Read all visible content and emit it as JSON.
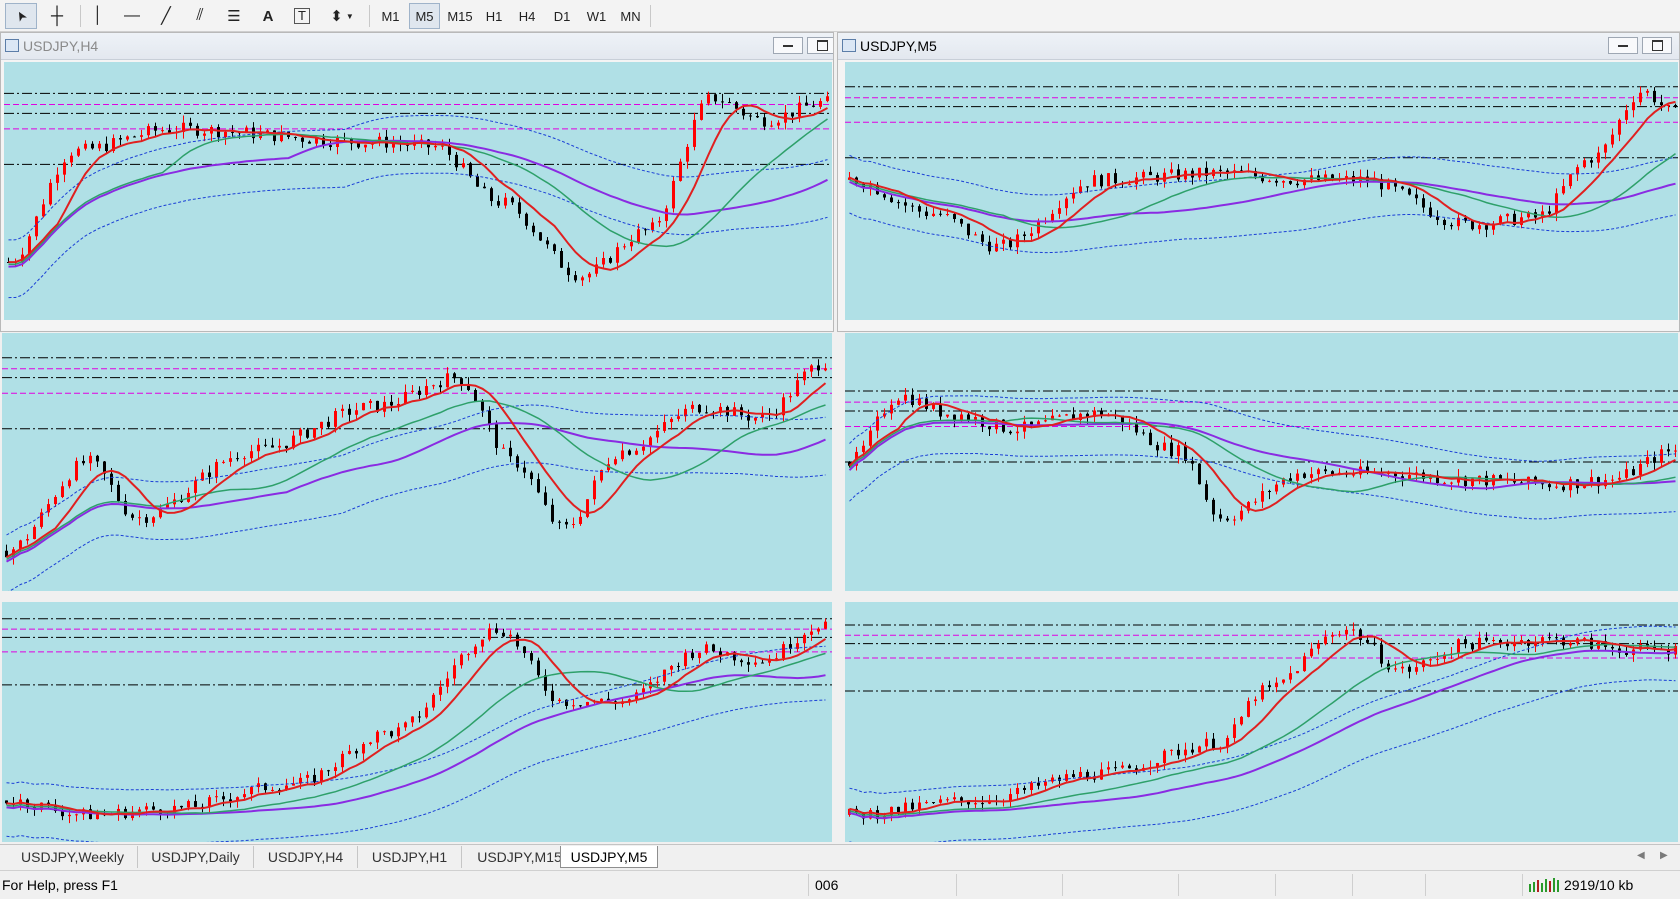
{
  "toolbar": {
    "tools": [
      {
        "name": "cursor-tool",
        "icon": "arrow-cursor-icon",
        "glyph": "➤"
      },
      {
        "name": "crosshair-tool",
        "icon": "crosshair-icon",
        "glyph": "┼"
      },
      {
        "name": "vertical-line-tool",
        "icon": "vertical-line-icon",
        "glyph": "│"
      },
      {
        "name": "horizontal-line-tool",
        "icon": "horizontal-line-icon",
        "glyph": "—"
      },
      {
        "name": "trendline-tool",
        "icon": "trendline-icon",
        "glyph": "╱"
      },
      {
        "name": "equidistant-channel-tool",
        "icon": "channel-icon",
        "glyph": "⫽"
      },
      {
        "name": "fibonacci-tool",
        "icon": "fibonacci-icon",
        "glyph": "☰"
      },
      {
        "name": "text-tool",
        "icon": "text-icon",
        "glyph": "A"
      },
      {
        "name": "text-label-tool",
        "icon": "text-label-icon",
        "glyph": "T"
      },
      {
        "name": "arrows-tool",
        "icon": "arrows-icon",
        "glyph": "⬍"
      }
    ],
    "periods": [
      "M1",
      "M5",
      "M15",
      "H1",
      "H4",
      "D1",
      "W1",
      "MN"
    ],
    "active_period": "M5"
  },
  "windows": [
    {
      "title": "USDJPY,H4",
      "active": false
    },
    {
      "title": "USDJPY,M5",
      "active": true
    }
  ],
  "tabs": [
    "USDJPY,Weekly",
    "USDJPY,Daily",
    "USDJPY,H4",
    "USDJPY,H1",
    "USDJPY,M15",
    "USDJPY,M5"
  ],
  "active_tab": "USDJPY,M5",
  "status": {
    "help": "For Help, press F1",
    "profile": "006",
    "traffic": "2919/10 kb"
  },
  "colors": {
    "chart_bg": "#b0e0e6",
    "bull_candle": "#ff0000",
    "bear_candle": "#000000",
    "ma_fast": "#e02020",
    "ma_mid": "#2ea06a",
    "ma_slow": "#8a2be2",
    "envelope": "#1a3fd6",
    "level_black": "#000000",
    "level_magenta": "#e000e0"
  }
}
